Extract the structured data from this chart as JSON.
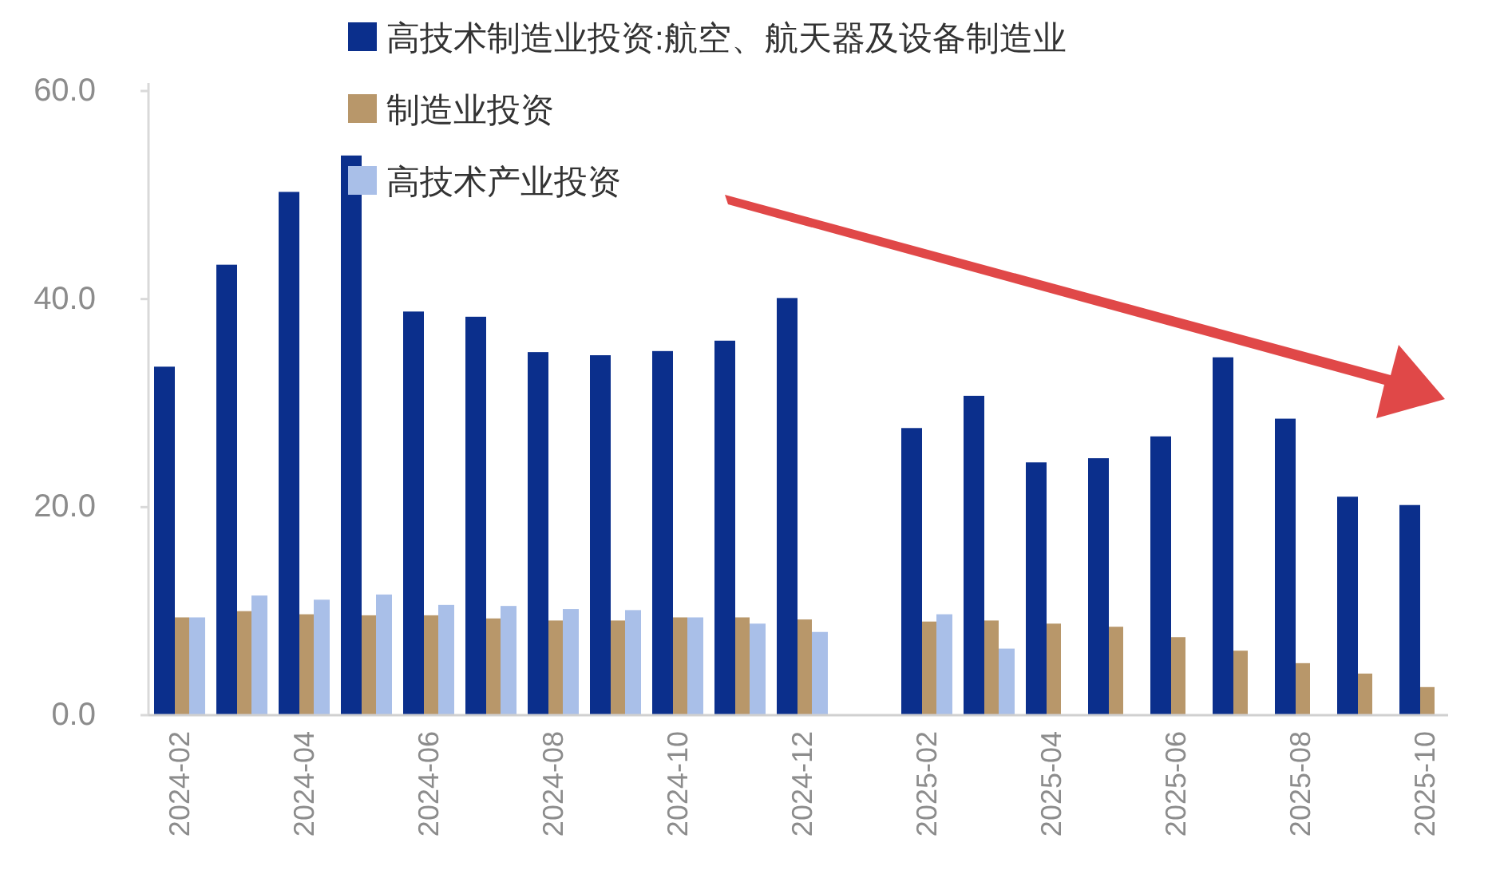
{
  "chart_data": {
    "type": "bar",
    "categories": [
      "2024-02",
      null,
      "2024-04",
      null,
      "2024-06",
      null,
      "2024-08",
      null,
      "2024-10",
      null,
      "2024-12",
      null,
      "2025-02",
      null,
      "2025-04",
      null,
      "2025-06",
      null,
      "2025-08",
      null,
      "2025-10"
    ],
    "series": [
      {
        "name": "高技术制造业投资:航空、航天器及设备制造业",
        "color": "#0b2f8c",
        "values": [
          33.5,
          43.3,
          50.3,
          53.8,
          38.8,
          38.3,
          34.9,
          34.6,
          35.0,
          36.0,
          40.1,
          null,
          27.6,
          30.7,
          24.3,
          24.7,
          26.8,
          34.4,
          28.5,
          21.0,
          20.2
        ]
      },
      {
        "name": "制造业投资",
        "color": "#b8976a",
        "values": [
          9.4,
          10.0,
          9.7,
          9.6,
          9.6,
          9.3,
          9.1,
          9.1,
          9.4,
          9.4,
          9.2,
          null,
          9.0,
          9.1,
          8.8,
          8.5,
          7.5,
          6.2,
          5.0,
          4.0,
          2.7
        ]
      },
      {
        "name": "高技术产业投资",
        "color": "#a9bfe8",
        "values": [
          9.4,
          11.5,
          11.1,
          11.6,
          10.6,
          10.5,
          10.2,
          10.1,
          9.4,
          8.8,
          8.0,
          null,
          9.7,
          6.4,
          null,
          null,
          null,
          null,
          null,
          null,
          null
        ]
      }
    ],
    "ylim": [
      0,
      60
    ],
    "yticks": [
      {
        "value": 0,
        "label": "0.0"
      },
      {
        "value": 20,
        "label": "20.0"
      },
      {
        "value": 40,
        "label": "40.0"
      },
      {
        "value": 60,
        "label": "60.0"
      }
    ],
    "grid": false,
    "legend": "top"
  }
}
